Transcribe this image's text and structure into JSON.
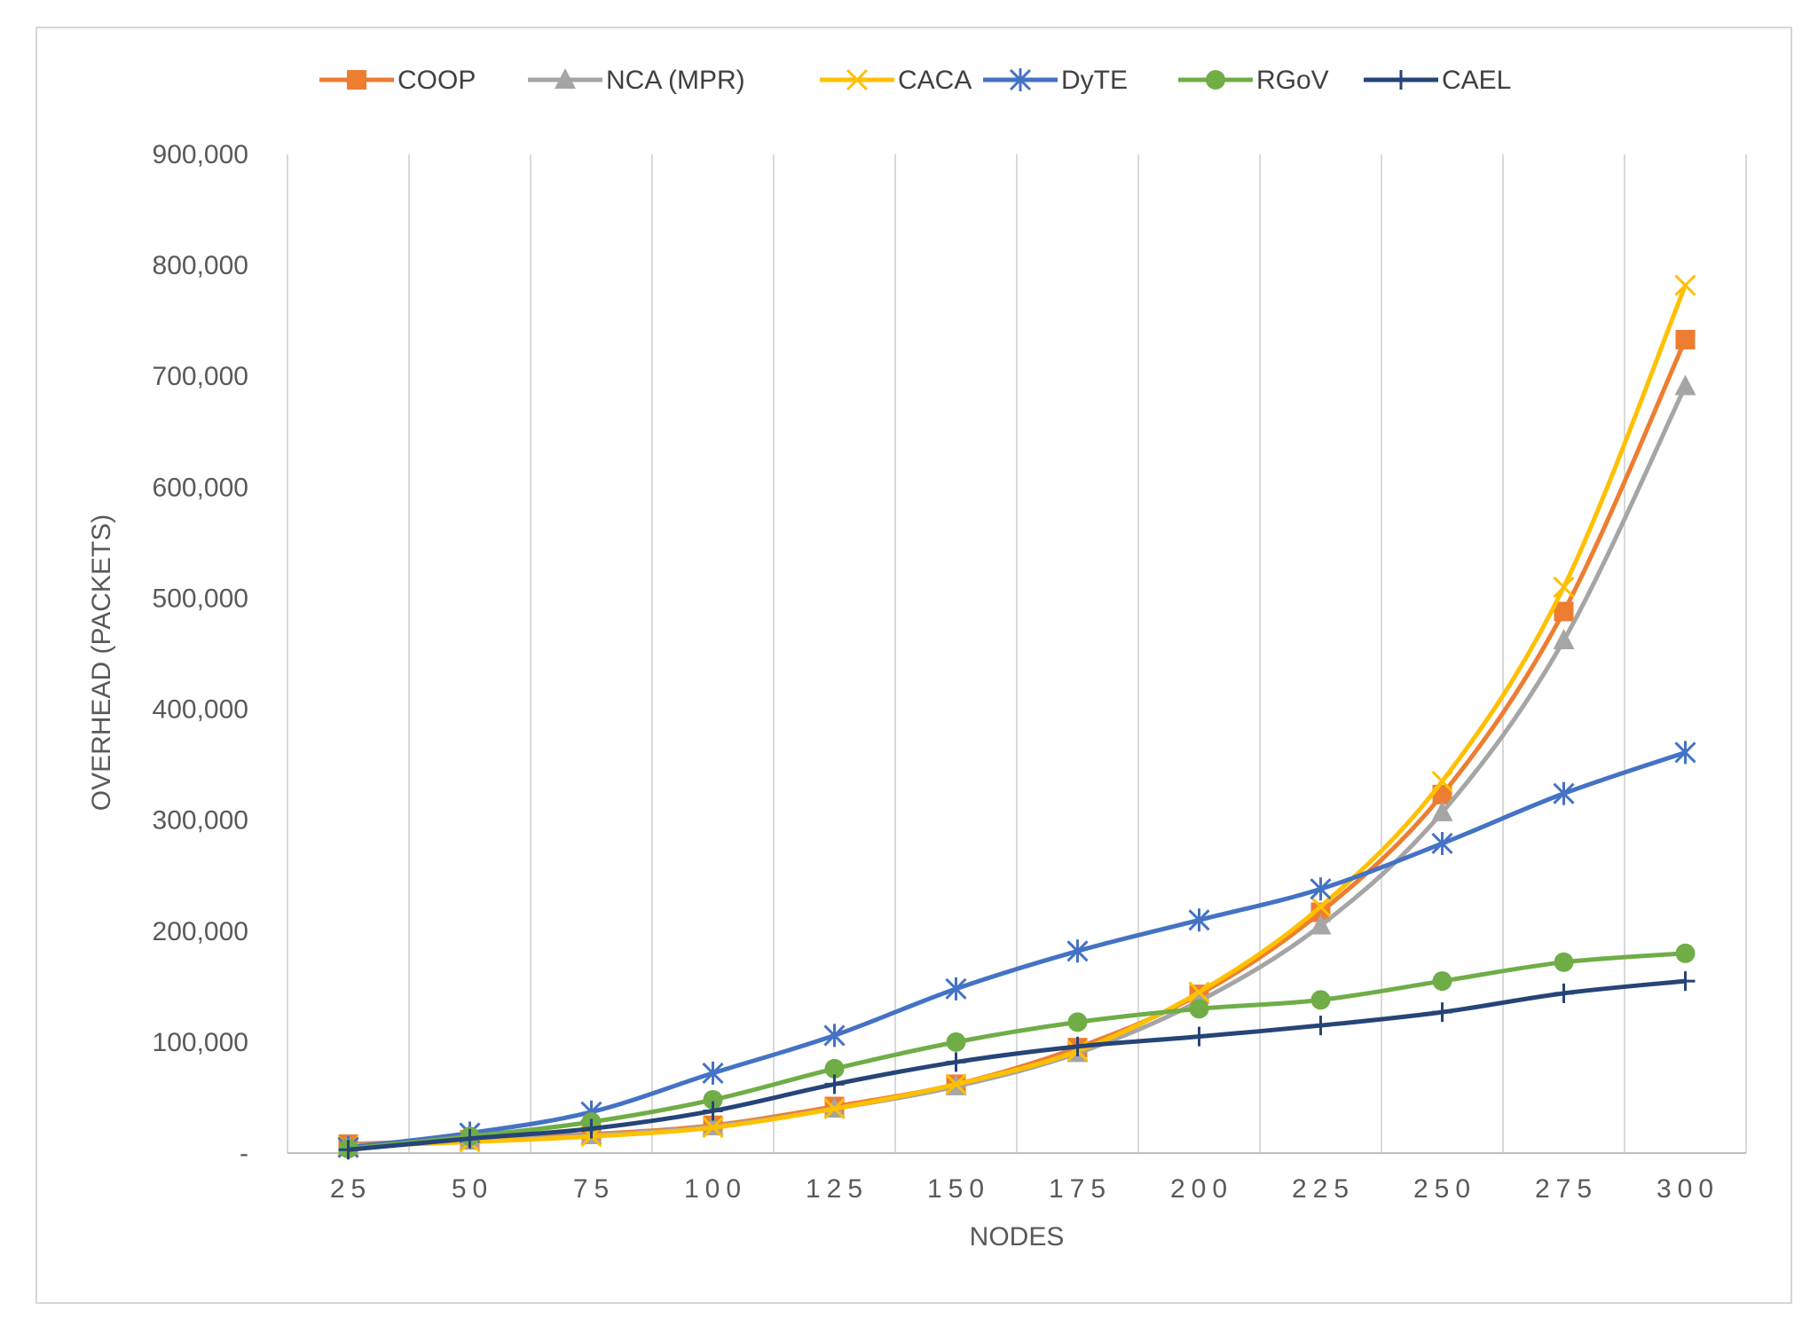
{
  "chart_data": {
    "type": "line",
    "title": "",
    "xlabel": "NODES",
    "ylabel": "OVERHEAD (PACKETS)",
    "categories": [
      "25",
      "50",
      "75",
      "100",
      "125",
      "150",
      "175",
      "200",
      "225",
      "250",
      "275",
      "300"
    ],
    "ylim": [
      0,
      900000
    ],
    "yticks": [
      0,
      100000,
      200000,
      300000,
      400000,
      500000,
      600000,
      700000,
      800000,
      900000
    ],
    "ytick_labels": [
      "-",
      "100,000",
      "200,000",
      "300,000",
      "400,000",
      "500,000",
      "600,000",
      "700,000",
      "800,000",
      "900,000"
    ],
    "grid": "vertical",
    "legend_position": "top",
    "series": [
      {
        "name": "COOP",
        "color": "#ED7D31",
        "marker": "square",
        "values": [
          8000,
          12000,
          17000,
          25000,
          42000,
          62000,
          95000,
          143000,
          217000,
          323000,
          488000,
          733000
        ]
      },
      {
        "name": "NCA (MPR)",
        "color": "#A5A5A5",
        "marker": "triangle",
        "values": [
          7000,
          11000,
          16000,
          24000,
          40000,
          60000,
          90000,
          137000,
          205000,
          307000,
          462000,
          691000
        ]
      },
      {
        "name": "CACA",
        "color": "#FFC000",
        "marker": "x",
        "values": [
          6000,
          10000,
          15000,
          23000,
          40000,
          62000,
          92000,
          145000,
          222000,
          335000,
          510000,
          782000
        ]
      },
      {
        "name": "DyTE",
        "color": "#4472C4",
        "marker": "star",
        "values": [
          5000,
          18000,
          37000,
          72000,
          106000,
          148000,
          182000,
          210000,
          238000,
          279000,
          324000,
          361000
        ]
      },
      {
        "name": "RGoV",
        "color": "#70AD47",
        "marker": "circle",
        "values": [
          4000,
          15000,
          28000,
          48000,
          76000,
          100000,
          118000,
          130000,
          138000,
          155000,
          172000,
          180000
        ]
      },
      {
        "name": "CAEL",
        "color": "#264478",
        "marker": "plus",
        "values": [
          3000,
          13000,
          22000,
          38000,
          62000,
          82000,
          96000,
          105000,
          115000,
          127000,
          144000,
          155000
        ]
      }
    ]
  }
}
